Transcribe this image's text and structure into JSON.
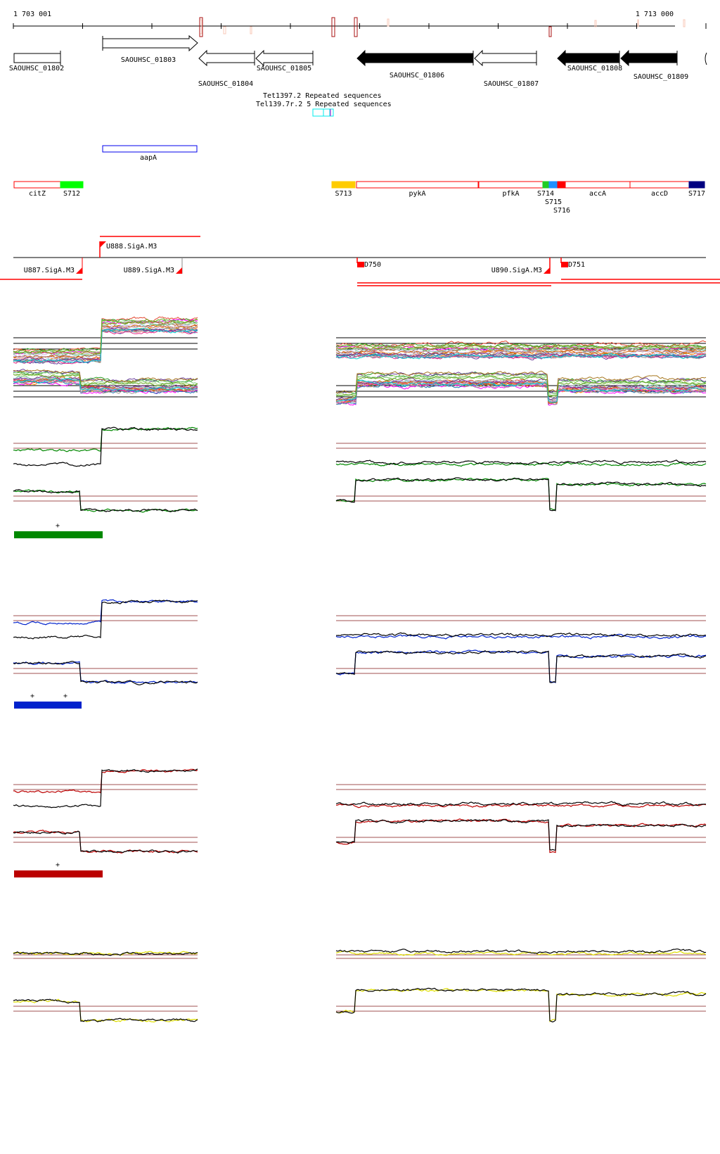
{
  "coords": {
    "start": "1 703 001",
    "end": "1 713 000"
  },
  "genes": [
    {
      "label": "SAOUHSC_01802"
    },
    {
      "label": "SAOUHSC_01803"
    },
    {
      "label": "SAOUHSC_01804"
    },
    {
      "label": "SAOUHSC_01805"
    },
    {
      "label": "SAOUHSC_01806"
    },
    {
      "label": "SAOUHSC_01807"
    },
    {
      "label": "SAOUHSC_01808"
    },
    {
      "label": "SAOUHSC_01809"
    }
  ],
  "repeats": {
    "label_a": "Tet1397.2 Repeated sequences",
    "label_b": "Tel139.7r.2 5 Repeated sequences"
  },
  "ncrna": {
    "label": "aapA"
  },
  "operons": [
    {
      "label": "citZ",
      "color": "#ffffff"
    },
    {
      "label": "S712",
      "color": "#00ff00"
    },
    {
      "label": "S713",
      "color": "#ffcc00"
    },
    {
      "label": "pykA",
      "color": "#ffffff"
    },
    {
      "label": "pfkA",
      "color": "#ffffff"
    },
    {
      "label": "S714",
      "color": "#22cc22"
    },
    {
      "label": "S715",
      "color": "#1e90ff"
    },
    {
      "label": "S716",
      "color": "#ff0000"
    },
    {
      "label": "accA",
      "color": "#ffffff"
    },
    {
      "label": "accD",
      "color": "#ffffff"
    },
    {
      "label": "S717",
      "color": "#000080"
    }
  ],
  "promoters": [
    {
      "label": "U888.SigA.M3"
    },
    {
      "label": "U887.SigA.M3"
    },
    {
      "label": "U889.SigA.M3"
    },
    {
      "label": "D750"
    },
    {
      "label": "U890.SigA.M3"
    },
    {
      "label": "D751"
    }
  ],
  "tracks": [
    {
      "name": "green",
      "color": "#008800",
      "marks": [
        "+"
      ]
    },
    {
      "name": "blue",
      "color": "#0022cc",
      "marks": [
        "+",
        "+"
      ]
    },
    {
      "name": "red",
      "color": "#bb0000",
      "marks": [
        "+"
      ]
    },
    {
      "name": "yellow",
      "color": "#dddd00",
      "marks": []
    }
  ]
}
